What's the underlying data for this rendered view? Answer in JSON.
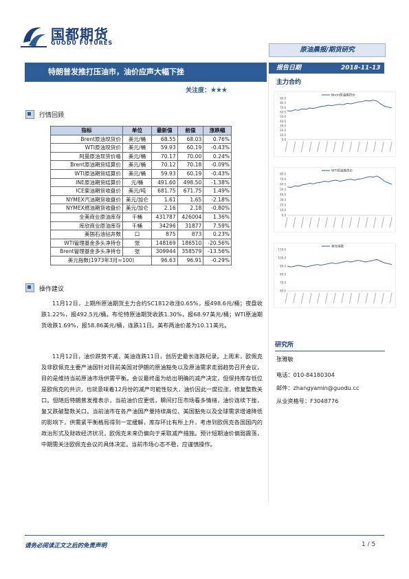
{
  "logo": {
    "cn": "国都期货",
    "en": "GUODU FUTURES"
  },
  "report_type": "原油晨报/期货研究",
  "title": "特朗普发推打压油市，油价应声大幅下挫",
  "report_date_label": "报告日期",
  "report_date": "2018-11-13",
  "attention_label": "关注度：",
  "attention_stars": "★★★",
  "main_contract_head": "主力合约",
  "section_market": "行情回顾",
  "section_ops": "操作建议",
  "table": {
    "headers": [
      "指标",
      "单位",
      "最新值",
      "前值",
      "涨跌幅"
    ],
    "rows": [
      [
        "Brent原油现货价",
        "美元/桶",
        "68.55",
        "68.03",
        "0.76%"
      ],
      [
        "WTI原油现货价",
        "美元/桶",
        "59.93",
        "60.19",
        "-0.43%"
      ],
      [
        "阿曼原油现货价格",
        "美元/桶",
        "70.17",
        "70.00",
        "0.24%"
      ],
      [
        "Brent原油期货结算价",
        "美元/桶",
        "70.12",
        "70.18",
        "-0.09%"
      ],
      [
        "WTI原油期货结算价",
        "美元/桶",
        "59.93",
        "60.19",
        "-0.43%"
      ],
      [
        "INE原油期货结算价",
        "元/桶",
        "491.60",
        "498.50",
        "-1.38%"
      ],
      [
        "ICE柴油期货收盘价",
        "美元/吨",
        "681.75",
        "671.75",
        "1.49%"
      ],
      [
        "NYMEX汽油期货收盘价",
        "美元/加仑",
        "1.61",
        "1.65",
        "-2.18%"
      ],
      [
        "NYMEX燃油期货收盘价",
        "美元/加仑",
        "2.16",
        "2.18",
        "-0.80%"
      ],
      [
        "全美商业原油库存",
        "千桶",
        "431787",
        "426004",
        "1.36%"
      ],
      [
        "库欣商业原油库存",
        "千桶",
        "34296",
        "31877",
        "7.59%"
      ],
      [
        "美国石油钻井数",
        "口",
        "875",
        "873",
        "0.23%"
      ],
      [
        "WTI管理基金多头净持仓",
        "张",
        "148169",
        "186510",
        "-20.56%"
      ],
      [
        "Brent管理基金多头净持仓",
        "张",
        "309944",
        "358579",
        "-13.56%"
      ]
    ],
    "footer": [
      "美元指数(1973年3月=100)",
      "96.63",
      "96.91",
      "-0.29%"
    ]
  },
  "paragraphs": [
    "11月12日，上期所原油期货主力合约SC1812收涨0.65%，报498.6元/桶；夜盘收跌1.22%，报492.5元/桶。布伦特原油期货收跌1.30%，报68.97美元/桶；WTI原油期货收跌1.69%，报58.86美元/桶，连跌11日。美布两油价差为10.11美元。",
    "11月12日，油价跌势不减，美油连跌11日，创历史最长连跌纪录。上周末，欧佩克及非欧佩克主要产油国针对目前美国对伊朗的原油豁免以及原油需求走弱趋势召开会议，目的是维持当前原油市场供需平衡。会议最终虽为给出明确的减产决定，但保持库存低位是欧佩克的共识，也就意味着12月份的减产可能性较大，油价因此一度拉涨，修复整数关口。但随后特朗普发推表示，当前油价应更低，瞬间打压市场看多情绪，油价连续下挫，复又跌破整数关口。当前油市在各产油国产量持续高位、美国豁免以及全球需求增速降低的影响下，供需紧平衡格局得到一定缓解，库存环比有所上升，考虑到欧佩克各国国内的政治形式及财政经济状况，欧佩克未来仍偏向于采取减产措施。预计短期油价偏弱震荡，中期需关注欧佩克会议的具体决定。当前市场心态不稳，应谨慎操作。"
  ],
  "research": {
    "head": "研究所",
    "name": "张雅敏",
    "phone": "电话：010-84180304",
    "email": "邮件：zhangyamin@guodu.cc",
    "license": "从业资格号：F3048776"
  },
  "footer": {
    "disclaimer": "请务必阅读正文之后的免责声明",
    "page": "1 / 5"
  },
  "charts": [
    {
      "legend": "Brent原油期货价",
      "yticks": [
        "90.0",
        "80.0",
        "70.0",
        "60.0",
        "50.0",
        "40.0",
        "30.0",
        "20.0",
        "10.0",
        "0.0"
      ],
      "color": "#2e5c97",
      "chart_data": {
        "type": "line",
        "ylim": [
          0,
          90
        ],
        "values": [
          63,
          62,
          65,
          64,
          67,
          66,
          69,
          68,
          70,
          72,
          73,
          75,
          74,
          76,
          77,
          76,
          79,
          78,
          80,
          82,
          83,
          85,
          84,
          86,
          84,
          78,
          73,
          71,
          69
        ]
      }
    },
    {
      "legend": "WTI原油期货价",
      "yticks": [
        "80.0",
        "70.0",
        "60.0",
        "50.0",
        "40.0",
        "30.0",
        "20.0",
        "10.0",
        "0.0"
      ],
      "color": "#2e5c97",
      "chart_data": {
        "type": "line",
        "ylim": [
          0,
          80
        ],
        "values": [
          55,
          54,
          57,
          56,
          59,
          60,
          62,
          61,
          63,
          64,
          66,
          65,
          67,
          68,
          66,
          67,
          69,
          70,
          68,
          70,
          71,
          73,
          75,
          74,
          76,
          72,
          66,
          63,
          60
        ]
      }
    },
    {
      "legend": "美元指数",
      "yticks": [
        "110.0",
        "100.0",
        "90.0",
        "80.0",
        "70.0",
        "60.0"
      ],
      "color": "#2e5c97",
      "chart_data": {
        "type": "line",
        "ylim": [
          60,
          110
        ],
        "values": [
          90,
          89,
          90,
          91,
          90,
          89,
          90,
          91,
          92,
          91,
          92,
          93,
          94,
          93,
          94,
          95,
          96,
          95,
          96,
          97,
          96,
          95,
          96,
          97,
          98,
          96,
          94,
          93,
          92
        ]
      }
    }
  ]
}
